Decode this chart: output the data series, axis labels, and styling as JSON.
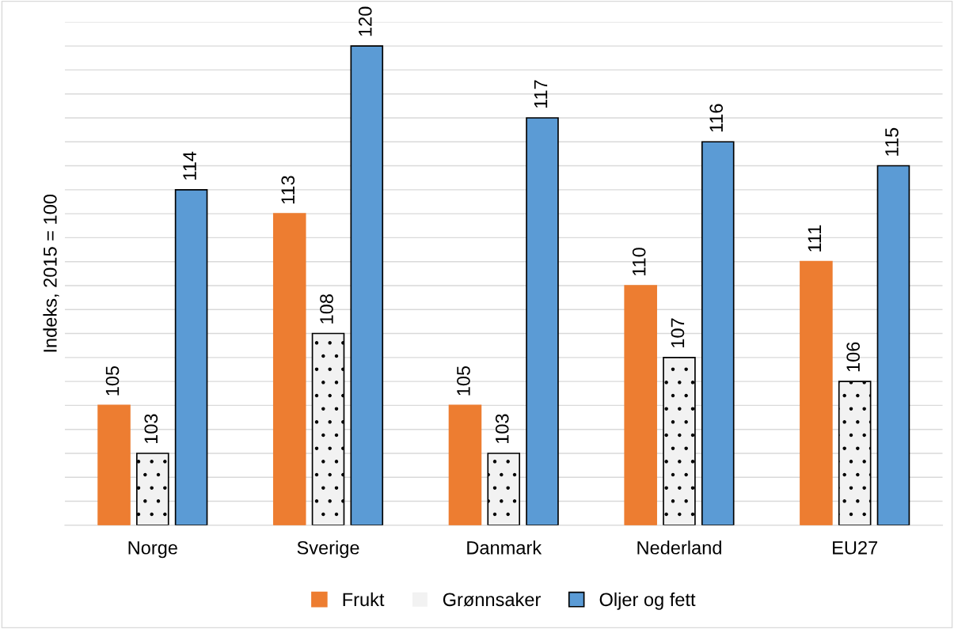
{
  "chart_data": {
    "type": "bar",
    "ylabel": "Indeks, 2015 = 100",
    "categories": [
      "Norge",
      "Sverige",
      "Danmark",
      "Nederland",
      "EU27"
    ],
    "series": [
      {
        "name": "Frukt",
        "color": "#ed7d31",
        "values": [
          105,
          113,
          105,
          110,
          111
        ]
      },
      {
        "name": "Grønnsaker",
        "color": "#f2f2f2",
        "values": [
          103,
          108,
          103,
          107,
          106
        ]
      },
      {
        "name": "Oljer og fett",
        "color": "#5b9bd5",
        "values": [
          114,
          120,
          117,
          116,
          115
        ]
      }
    ],
    "ylim": [
      100,
      121
    ],
    "yticks": [
      {
        "value": 100,
        "label": null
      },
      {
        "value": 101,
        "label": null
      },
      {
        "value": 102,
        "label": null
      },
      {
        "value": 103,
        "label": null
      },
      {
        "value": 104,
        "label": null
      },
      {
        "value": 105,
        "label": null
      },
      {
        "value": 106,
        "label": null
      },
      {
        "value": 107,
        "label": null
      },
      {
        "value": 108,
        "label": null
      },
      {
        "value": 109,
        "label": null
      },
      {
        "value": 110,
        "label": null
      },
      {
        "value": 111,
        "label": null
      },
      {
        "value": 112,
        "label": null
      },
      {
        "value": 113,
        "label": null
      },
      {
        "value": 114,
        "label": null
      },
      {
        "value": 115,
        "label": null
      },
      {
        "value": 116,
        "label": null
      },
      {
        "value": 117,
        "label": null
      },
      {
        "value": 118,
        "label": null
      },
      {
        "value": 119,
        "label": null
      },
      {
        "value": 120,
        "label": null
      },
      {
        "value": 121,
        "label": null
      }
    ],
    "grid": "y",
    "legend": "bottom",
    "data_labels": true,
    "tick_labels": "x"
  }
}
